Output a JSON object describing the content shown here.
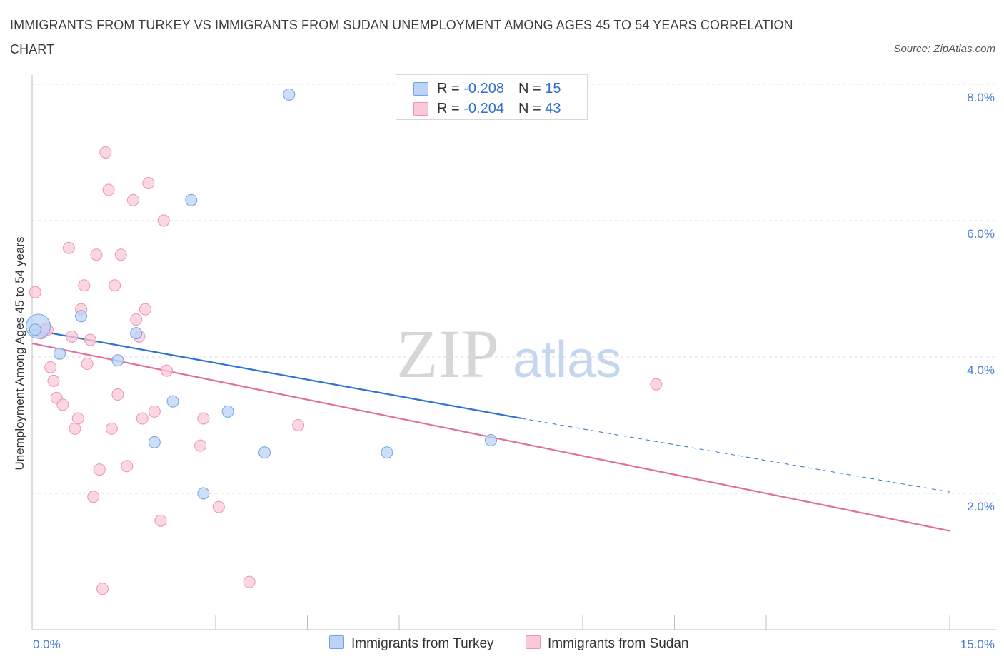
{
  "title": "IMMIGRANTS FROM TURKEY VS IMMIGRANTS FROM SUDAN UNEMPLOYMENT AMONG AGES 45 TO 54 YEARS CORRELATION CHART",
  "source": "Source: ZipAtlas.com",
  "watermark": {
    "zip": "ZIP",
    "atlas": "atlas"
  },
  "colors": {
    "turkey": "#6fa3e8",
    "turkey_fill": "#bcd3f5",
    "sudan": "#f093b0",
    "sudan_fill": "#f9c9d7",
    "turkey_line": "#2f74d0",
    "sudan_line": "#e0709a",
    "axis_text": "#4a7fd4"
  },
  "legend": {
    "rows": [
      {
        "r_label": "R =",
        "r_value": "-0.208",
        "n_label": "N =",
        "n_value": "15"
      },
      {
        "r_label": "R =",
        "r_value": "-0.204",
        "n_label": "N =",
        "n_value": "43"
      }
    ]
  },
  "chart_data": {
    "type": "scatter",
    "title": "IMMIGRANTS FROM TURKEY VS IMMIGRANTS FROM SUDAN UNEMPLOYMENT AMONG AGES 45 TO 54 YEARS CORRELATION CHART",
    "xlabel": "",
    "ylabel": "Unemployment Among Ages 45 to 54 years",
    "xlim": [
      0,
      15
    ],
    "ylim": [
      0,
      8
    ],
    "x_tick_labels": [
      "0.0%",
      "15.0%"
    ],
    "y_ticks": [
      2,
      4,
      6,
      8
    ],
    "y_tick_labels": [
      "2.0%",
      "4.0%",
      "6.0%",
      "8.0%"
    ],
    "grid": true,
    "legend_position": "bottom",
    "series": [
      {
        "name": "Immigrants from Turkey",
        "points": [
          [
            0.1,
            4.45
          ],
          [
            0.45,
            4.05
          ],
          [
            0.8,
            4.6
          ],
          [
            1.4,
            3.95
          ],
          [
            1.7,
            4.35
          ],
          [
            2.0,
            2.75
          ],
          [
            2.3,
            3.35
          ],
          [
            2.6,
            6.3
          ],
          [
            2.8,
            2.0
          ],
          [
            3.2,
            3.2
          ],
          [
            3.8,
            2.6
          ],
          [
            4.2,
            7.85
          ],
          [
            5.8,
            2.6
          ],
          [
            7.5,
            2.78
          ],
          [
            0.05,
            4.4
          ]
        ],
        "trend": {
          "x0": 0,
          "y0": 4.4,
          "x1": 8.0,
          "y1": 3.1,
          "dashed_to_x": 15,
          "dashed_to_y": 2.02
        }
      },
      {
        "name": "Immigrants from Sudan",
        "points": [
          [
            0.05,
            4.95
          ],
          [
            0.15,
            4.35
          ],
          [
            0.2,
            4.4
          ],
          [
            0.3,
            3.85
          ],
          [
            0.35,
            3.65
          ],
          [
            0.4,
            3.4
          ],
          [
            0.5,
            3.3
          ],
          [
            0.6,
            5.6
          ],
          [
            0.65,
            4.3
          ],
          [
            0.7,
            2.95
          ],
          [
            0.75,
            3.1
          ],
          [
            0.8,
            4.7
          ],
          [
            0.85,
            5.05
          ],
          [
            0.9,
            3.9
          ],
          [
            1.0,
            1.95
          ],
          [
            1.05,
            5.5
          ],
          [
            1.1,
            2.35
          ],
          [
            1.15,
            0.6
          ],
          [
            1.2,
            7.0
          ],
          [
            1.25,
            6.45
          ],
          [
            1.3,
            2.95
          ],
          [
            1.35,
            5.05
          ],
          [
            1.4,
            3.45
          ],
          [
            1.45,
            5.5
          ],
          [
            1.55,
            2.4
          ],
          [
            1.65,
            6.3
          ],
          [
            1.7,
            4.55
          ],
          [
            1.75,
            4.3
          ],
          [
            1.8,
            3.1
          ],
          [
            1.85,
            4.7
          ],
          [
            1.9,
            6.55
          ],
          [
            2.0,
            3.2
          ],
          [
            2.1,
            1.6
          ],
          [
            2.15,
            6.0
          ],
          [
            2.2,
            3.8
          ],
          [
            2.75,
            2.7
          ],
          [
            2.8,
            3.1
          ],
          [
            3.05,
            1.8
          ],
          [
            3.55,
            0.7
          ],
          [
            4.35,
            3.0
          ],
          [
            10.2,
            3.6
          ],
          [
            0.25,
            4.4
          ],
          [
            0.95,
            4.25
          ]
        ],
        "trend": {
          "x0": 0,
          "y0": 4.2,
          "x1": 15,
          "y1": 1.45
        }
      }
    ]
  }
}
